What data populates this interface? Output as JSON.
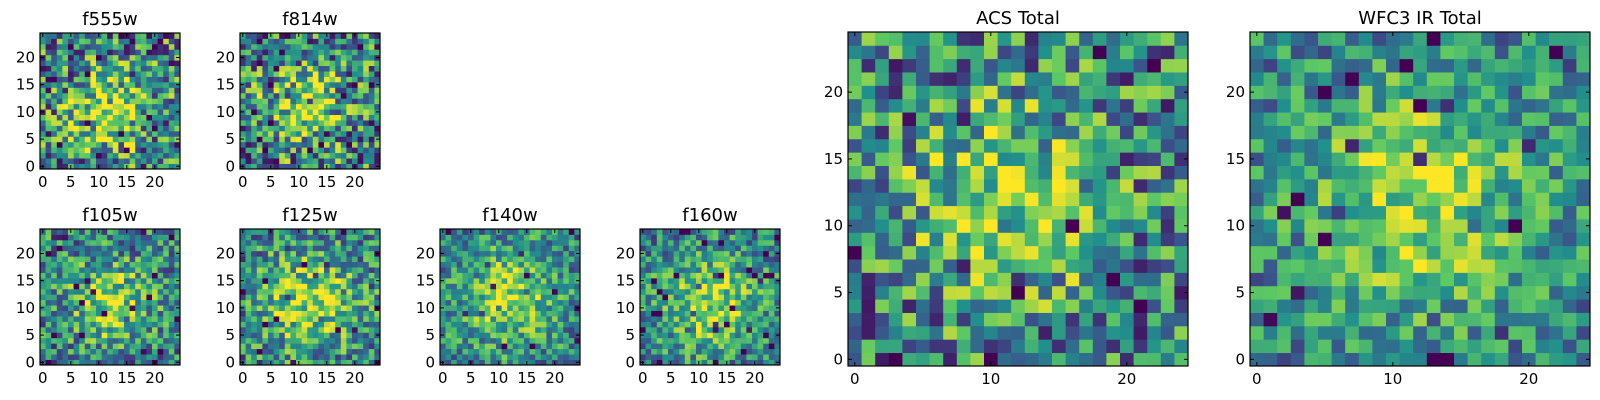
{
  "figure": {
    "colormap": [
      "#440154",
      "#3b528b",
      "#21908c",
      "#5dc863",
      "#fde725"
    ]
  },
  "chart_data": [
    {
      "type": "heatmap",
      "id": "f555w",
      "title": "f555w",
      "grid_size": 25,
      "xlim": [
        0,
        24
      ],
      "ylim": [
        0,
        24
      ],
      "xticks": [
        0,
        5,
        10,
        15,
        20
      ],
      "yticks": [
        0,
        5,
        10,
        15,
        20
      ],
      "x_tick_labels": [
        "0",
        "5",
        "10",
        "15",
        "20"
      ],
      "y_tick_labels": [
        "0",
        "5",
        "10",
        "15",
        "20"
      ],
      "peak_center": [
        12,
        10
      ],
      "peak_width": 5,
      "noise": 0.45,
      "seed": 11
    },
    {
      "type": "heatmap",
      "id": "f814w",
      "title": "f814w",
      "grid_size": 25,
      "xlim": [
        0,
        24
      ],
      "ylim": [
        0,
        24
      ],
      "xticks": [
        0,
        5,
        10,
        15,
        20
      ],
      "yticks": [
        0,
        5,
        10,
        15,
        20
      ],
      "x_tick_labels": [
        "0",
        "5",
        "10",
        "15",
        "20"
      ],
      "y_tick_labels": [
        "0",
        "5",
        "10",
        "15",
        "20"
      ],
      "peak_center": [
        11,
        11
      ],
      "peak_width": 5,
      "noise": 0.45,
      "seed": 23
    },
    {
      "type": "heatmap",
      "id": "f105w",
      "title": "f105w",
      "grid_size": 25,
      "xlim": [
        0,
        24
      ],
      "ylim": [
        0,
        24
      ],
      "xticks": [
        0,
        5,
        10,
        15,
        20
      ],
      "yticks": [
        0,
        5,
        10,
        15,
        20
      ],
      "x_tick_labels": [
        "0",
        "5",
        "10",
        "15",
        "20"
      ],
      "y_tick_labels": [
        "0",
        "5",
        "10",
        "15",
        "20"
      ],
      "peak_center": [
        12,
        11
      ],
      "peak_width": 5,
      "noise": 0.35,
      "seed": 37
    },
    {
      "type": "heatmap",
      "id": "f125w",
      "title": "f125w",
      "grid_size": 25,
      "xlim": [
        0,
        24
      ],
      "ylim": [
        0,
        24
      ],
      "xticks": [
        0,
        5,
        10,
        15,
        20
      ],
      "yticks": [
        0,
        5,
        10,
        15,
        20
      ],
      "x_tick_labels": [
        "0",
        "5",
        "10",
        "15",
        "20"
      ],
      "y_tick_labels": [
        "0",
        "5",
        "10",
        "15",
        "20"
      ],
      "peak_center": [
        12,
        11
      ],
      "peak_width": 6,
      "noise": 0.35,
      "seed": 41
    },
    {
      "type": "heatmap",
      "id": "f140w",
      "title": "f140w",
      "grid_size": 25,
      "xlim": [
        0,
        24
      ],
      "ylim": [
        0,
        24
      ],
      "xticks": [
        0,
        5,
        10,
        15,
        20
      ],
      "yticks": [
        0,
        5,
        10,
        15,
        20
      ],
      "x_tick_labels": [
        "0",
        "5",
        "10",
        "15",
        "20"
      ],
      "y_tick_labels": [
        "0",
        "5",
        "10",
        "15",
        "20"
      ],
      "peak_center": [
        12,
        12
      ],
      "peak_width": 6,
      "noise": 0.3,
      "seed": 53
    },
    {
      "type": "heatmap",
      "id": "f160w",
      "title": "f160w",
      "grid_size": 25,
      "xlim": [
        0,
        24
      ],
      "ylim": [
        0,
        24
      ],
      "xticks": [
        0,
        5,
        10,
        15,
        20
      ],
      "yticks": [
        0,
        5,
        10,
        15,
        20
      ],
      "x_tick_labels": [
        "0",
        "5",
        "10",
        "15",
        "20"
      ],
      "y_tick_labels": [
        "0",
        "5",
        "10",
        "15",
        "20"
      ],
      "peak_center": [
        12,
        11
      ],
      "peak_width": 6,
      "noise": 0.3,
      "seed": 67
    },
    {
      "type": "heatmap",
      "id": "acs-total",
      "title": "ACS Total",
      "grid_size": 25,
      "xlim": [
        0,
        24
      ],
      "ylim": [
        0,
        24
      ],
      "xticks": [
        0,
        10,
        20
      ],
      "yticks": [
        0,
        5,
        10,
        15,
        20
      ],
      "x_tick_labels": [
        "0",
        "10",
        "20"
      ],
      "y_tick_labels": [
        "0",
        "5",
        "10",
        "15",
        "20"
      ],
      "peak_center": [
        11,
        12
      ],
      "peak_width": 5,
      "noise": 0.4,
      "seed": 79
    },
    {
      "type": "heatmap",
      "id": "wfc3-ir-total",
      "title": "WFC3 IR Total",
      "grid_size": 25,
      "xlim": [
        0,
        24
      ],
      "ylim": [
        0,
        24
      ],
      "xticks": [
        0,
        10,
        20
      ],
      "yticks": [
        0,
        5,
        10,
        15,
        20
      ],
      "x_tick_labels": [
        "0",
        "10",
        "20"
      ],
      "y_tick_labels": [
        "0",
        "5",
        "10",
        "15",
        "20"
      ],
      "peak_center": [
        12,
        12
      ],
      "peak_width": 6,
      "noise": 0.28,
      "seed": 97
    }
  ]
}
